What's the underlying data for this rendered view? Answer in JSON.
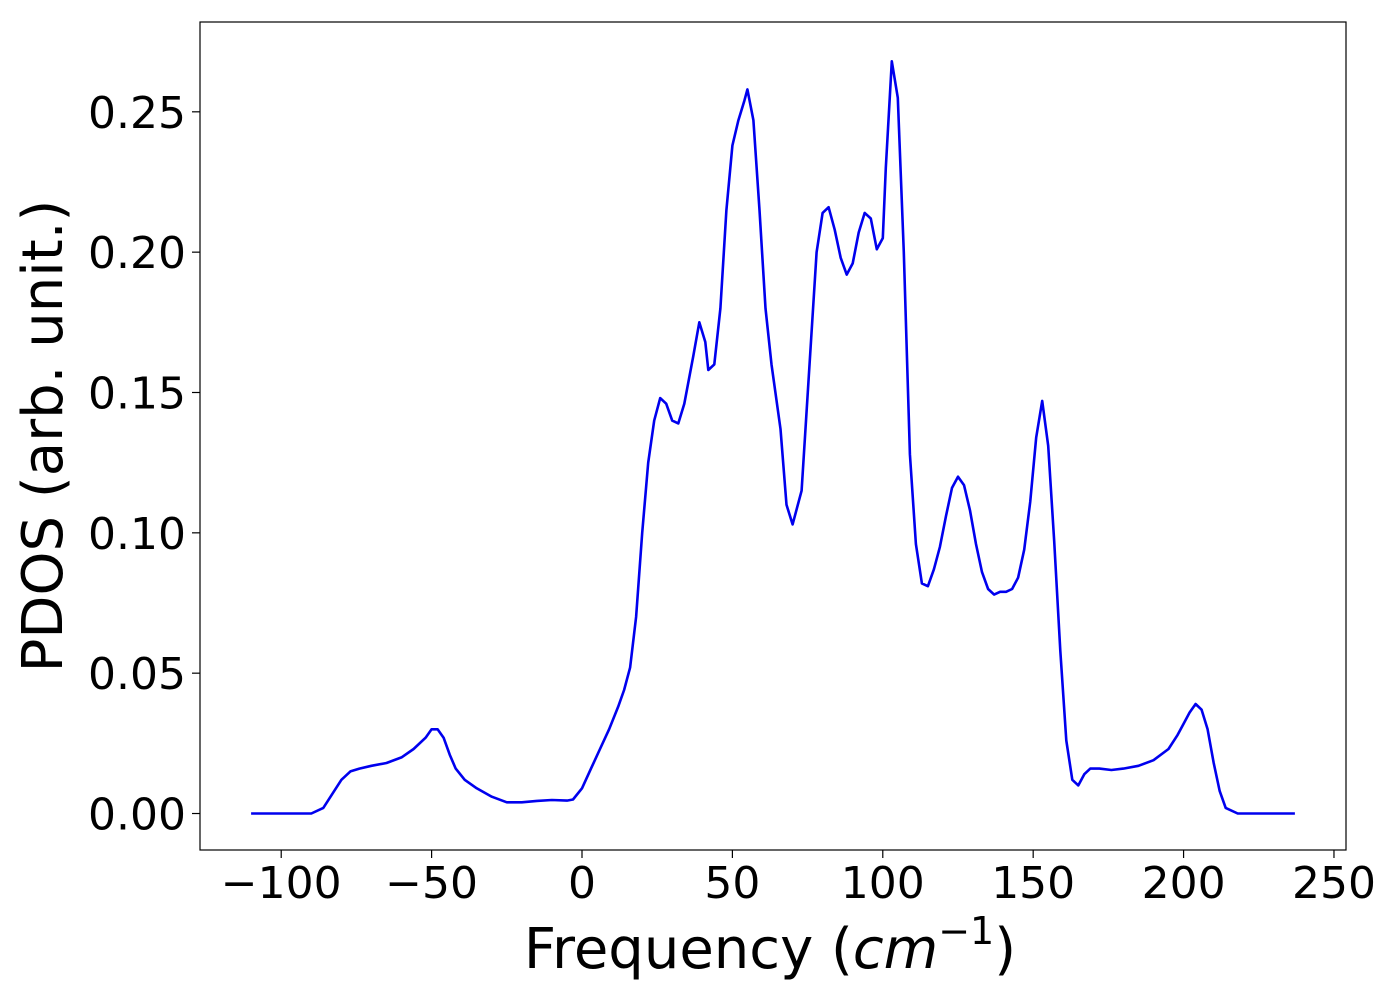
{
  "chart_data": {
    "type": "line",
    "title": "",
    "xlabel": "Frequency (",
    "xlabel_math": "cm",
    "xlabel_sup": "−1",
    "xlabel_close": ")",
    "ylabel": "PDOS (arb. unit.)",
    "xlim": [
      -127,
      254
    ],
    "ylim": [
      -0.013,
      0.282
    ],
    "xticks": [
      {
        "value": -100,
        "label": "−100"
      },
      {
        "value": -50,
        "label": "−50"
      },
      {
        "value": 0,
        "label": "0"
      },
      {
        "value": 50,
        "label": "50"
      },
      {
        "value": 100,
        "label": "100"
      },
      {
        "value": 150,
        "label": "150"
      },
      {
        "value": 200,
        "label": "200"
      },
      {
        "value": 250,
        "label": "250"
      }
    ],
    "yticks": [
      {
        "value": 0.0,
        "label": "0.00"
      },
      {
        "value": 0.05,
        "label": "0.05"
      },
      {
        "value": 0.1,
        "label": "0.10"
      },
      {
        "value": 0.15,
        "label": "0.15"
      },
      {
        "value": 0.2,
        "label": "0.20"
      },
      {
        "value": 0.25,
        "label": "0.25"
      }
    ],
    "grid": false,
    "series": [
      {
        "color": "#0000ee",
        "x": [
          -110,
          -90,
          -86,
          -83,
          -80,
          -77,
          -74,
          -70,
          -65,
          -60,
          -56,
          -52,
          -50,
          -48,
          -46,
          -44,
          -42,
          -39,
          -35,
          -30,
          -25,
          -20,
          -15,
          -10,
          -5,
          -3,
          0,
          3,
          6,
          9,
          12,
          14,
          16,
          18,
          20,
          22,
          24,
          26,
          28,
          30,
          32,
          34,
          37,
          39,
          41,
          42,
          44,
          46,
          48,
          50,
          52,
          54,
          55,
          57,
          59,
          61,
          63,
          66,
          68,
          70,
          73,
          76,
          78,
          80,
          82,
          84,
          86,
          88,
          90,
          92,
          94,
          96,
          98,
          100,
          101,
          103,
          105,
          107,
          109,
          111,
          113,
          115,
          117,
          119,
          121,
          123,
          125,
          127,
          129,
          131,
          133,
          135,
          137,
          139,
          141,
          143,
          145,
          147,
          149,
          151,
          153,
          155,
          157,
          159,
          161,
          163,
          165,
          167,
          169,
          172,
          176,
          180,
          185,
          190,
          195,
          198,
          200,
          202,
          204,
          206,
          208,
          210,
          212,
          214,
          218,
          226,
          237
        ],
        "y": [
          0.0,
          0.0,
          0.002,
          0.007,
          0.012,
          0.015,
          0.016,
          0.017,
          0.018,
          0.02,
          0.023,
          0.027,
          0.03,
          0.03,
          0.027,
          0.021,
          0.016,
          0.012,
          0.009,
          0.006,
          0.004,
          0.004,
          0.0045,
          0.0048,
          0.0046,
          0.005,
          0.009,
          0.016,
          0.023,
          0.03,
          0.038,
          0.044,
          0.052,
          0.07,
          0.1,
          0.125,
          0.14,
          0.148,
          0.146,
          0.14,
          0.139,
          0.146,
          0.163,
          0.175,
          0.168,
          0.158,
          0.16,
          0.18,
          0.215,
          0.238,
          0.247,
          0.254,
          0.258,
          0.247,
          0.215,
          0.18,
          0.16,
          0.137,
          0.11,
          0.103,
          0.115,
          0.166,
          0.2,
          0.214,
          0.216,
          0.208,
          0.198,
          0.192,
          0.196,
          0.207,
          0.214,
          0.212,
          0.201,
          0.205,
          0.23,
          0.268,
          0.255,
          0.2,
          0.128,
          0.096,
          0.082,
          0.081,
          0.087,
          0.095,
          0.106,
          0.116,
          0.12,
          0.117,
          0.108,
          0.096,
          0.086,
          0.08,
          0.078,
          0.079,
          0.079,
          0.08,
          0.084,
          0.094,
          0.111,
          0.134,
          0.147,
          0.131,
          0.097,
          0.058,
          0.026,
          0.012,
          0.01,
          0.014,
          0.016,
          0.016,
          0.0155,
          0.016,
          0.017,
          0.019,
          0.023,
          0.028,
          0.032,
          0.036,
          0.039,
          0.037,
          0.03,
          0.018,
          0.008,
          0.002,
          0.0,
          0.0,
          0.0
        ]
      }
    ]
  }
}
